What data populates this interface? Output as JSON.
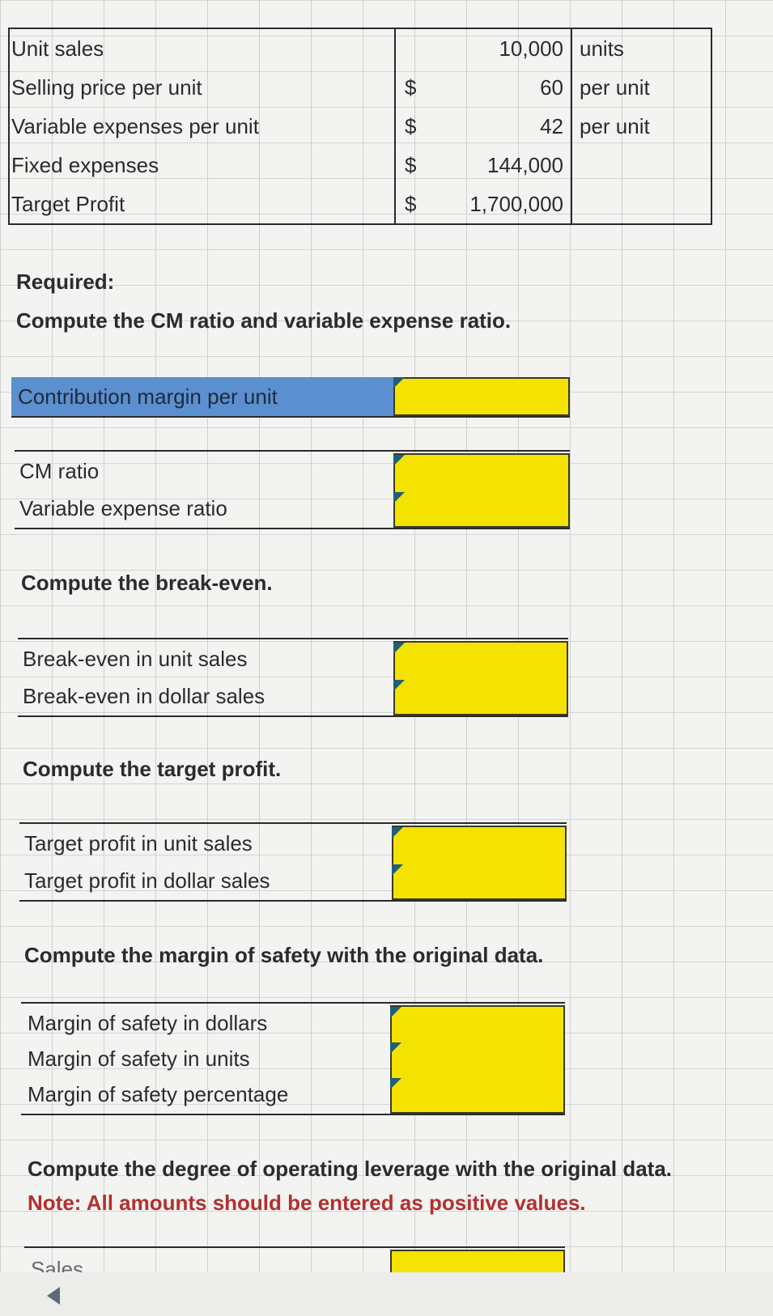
{
  "data_table": {
    "rows": [
      {
        "label": "Unit sales",
        "currency": "",
        "value": "10,000",
        "unit": "units"
      },
      {
        "label": "Selling price per unit",
        "currency": "$",
        "value": "60",
        "unit": "per unit"
      },
      {
        "label": "Variable expenses per unit",
        "currency": "$",
        "value": "42",
        "unit": "per unit"
      },
      {
        "label": "Fixed expenses",
        "currency": "$",
        "value": "144,000",
        "unit": ""
      },
      {
        "label": "Target Profit",
        "currency": "$",
        "value": "1,700,000",
        "unit": ""
      }
    ]
  },
  "required": {
    "heading": "Required:",
    "instruction": "Compute the CM ratio and variable expense ratio."
  },
  "cm_per_unit": {
    "label": "Contribution margin per unit",
    "value": ""
  },
  "ratios": {
    "cm_ratio": {
      "label": "CM ratio",
      "value": ""
    },
    "variable_expense_ratio": {
      "label": "Variable expense ratio",
      "value": ""
    }
  },
  "breakeven": {
    "heading": "Compute the break-even.",
    "unit_sales": {
      "label": "Break-even in unit sales",
      "value": ""
    },
    "dollar_sales": {
      "label": "Break-even in dollar sales",
      "value": ""
    }
  },
  "target_profit": {
    "heading": "Compute the target profit.",
    "unit_sales": {
      "label": "Target profit in unit sales",
      "value": ""
    },
    "dollar_sales": {
      "label": "Target profit in dollar sales",
      "value": ""
    }
  },
  "margin_of_safety": {
    "heading": "Compute the margin of safety with the original data.",
    "dollars": {
      "label": "Margin of safety in dollars",
      "value": ""
    },
    "units": {
      "label": "Margin of safety in units",
      "value": ""
    },
    "percentage": {
      "label": "Margin of safety percentage",
      "value": ""
    }
  },
  "operating_leverage": {
    "heading": "Compute the degree of operating leverage with the original data.",
    "note": "Note: All amounts should be entered as positive values.",
    "first_row_label": "Sales",
    "first_row_value": ""
  },
  "colors": {
    "input_fill": "#f4e200",
    "selected_cell": "#5b8fd0",
    "note_text": "#b0312f",
    "comment_flag": "#1f5f7a"
  }
}
